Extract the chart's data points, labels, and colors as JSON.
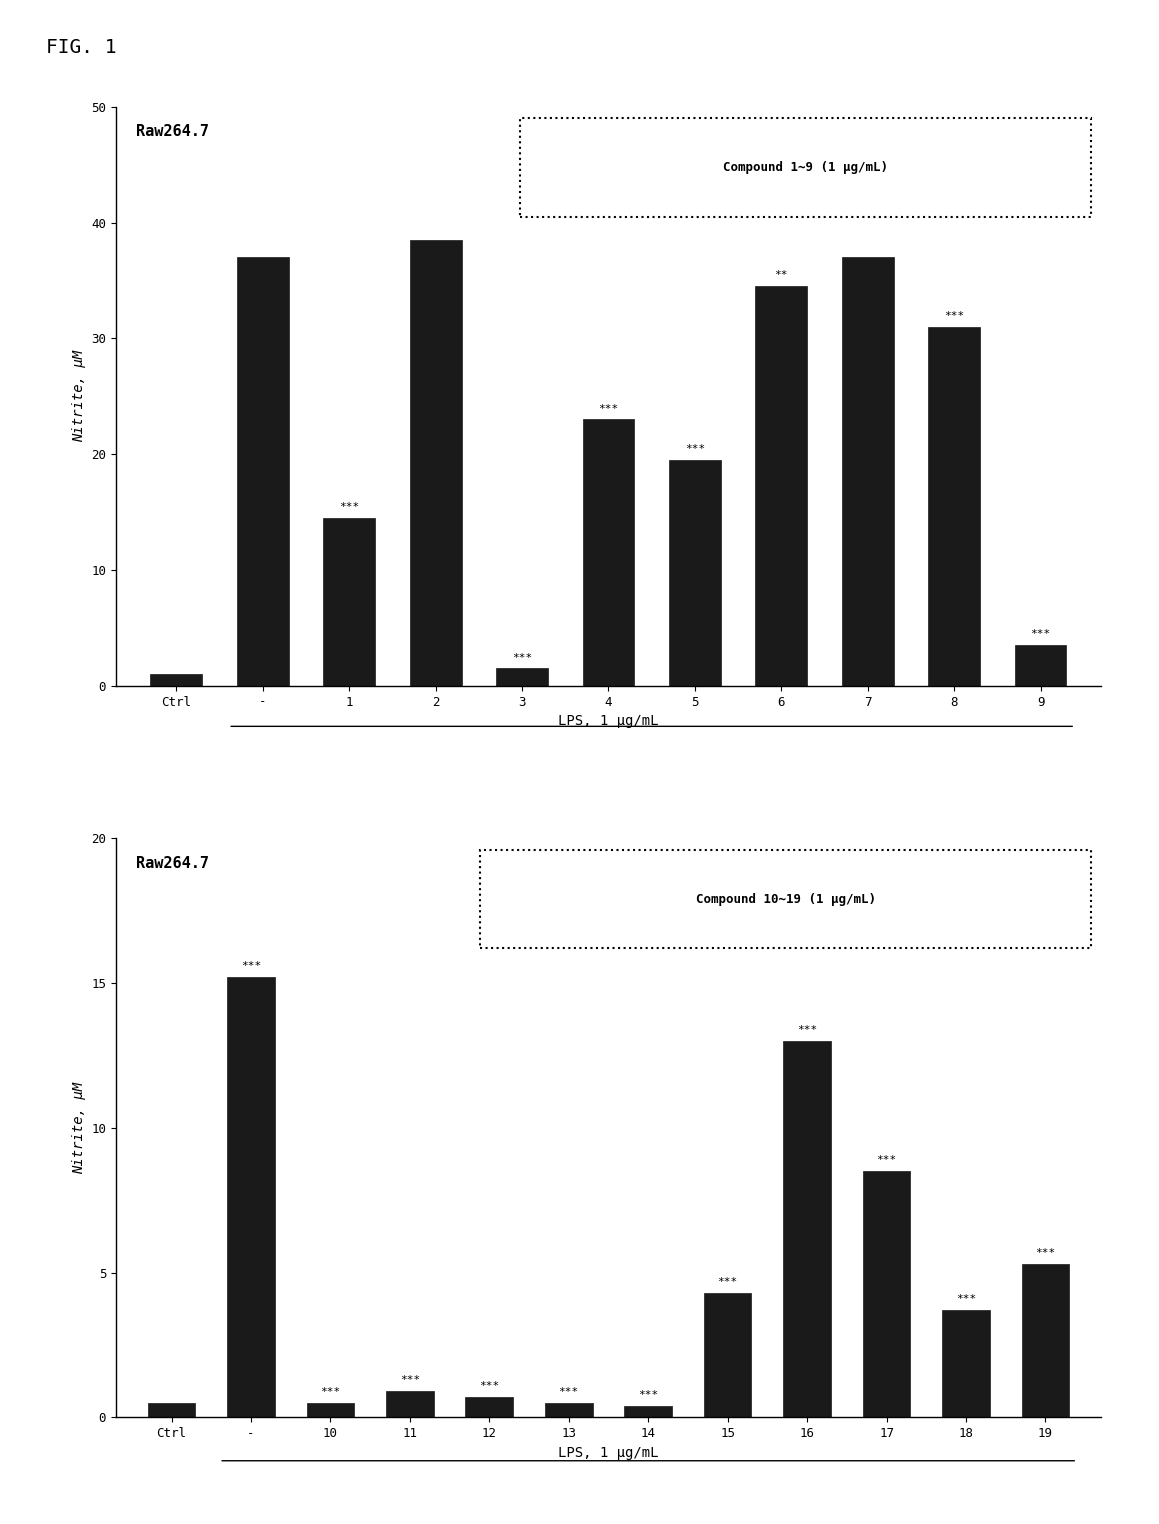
{
  "chart1": {
    "title_text": "Raw264.7",
    "legend_text": "Compound 1~9 (1 μg/mL)",
    "xlabel": "LPS, 1 μg/mL",
    "ylabel": "Nitrite, μM",
    "ylim": [
      0,
      50
    ],
    "yticks": [
      0,
      10,
      20,
      30,
      40,
      50
    ],
    "categories": [
      "Ctrl",
      "-",
      "1",
      "2",
      "3",
      "4",
      "5",
      "6",
      "7",
      "8",
      "9"
    ],
    "values": [
      1.0,
      37.0,
      14.5,
      38.5,
      1.5,
      23.0,
      19.5,
      34.5,
      37.0,
      31.0,
      3.5
    ],
    "bar_color": "#1a1a1a",
    "bar_edge_color": "#1a1a1a",
    "annotations": {
      "1": "***",
      "3": "***",
      "4": "***",
      "5": "***",
      "6": "**",
      "8": "***",
      "9": "***"
    }
  },
  "chart2": {
    "title_text": "Raw264.7",
    "legend_text": "Compound 10~19 (1 μg/mL)",
    "xlabel": "LPS, 1 μg/mL",
    "ylabel": "Nitrite, μM",
    "ylim": [
      0,
      20
    ],
    "yticks": [
      0,
      5,
      10,
      15,
      20
    ],
    "categories": [
      "Ctrl",
      "-",
      "10",
      "11",
      "12",
      "13",
      "14",
      "15",
      "16",
      "17",
      "18",
      "19"
    ],
    "values": [
      0.5,
      15.2,
      0.5,
      0.9,
      0.7,
      0.5,
      0.4,
      4.3,
      13.0,
      8.5,
      3.7,
      5.3
    ],
    "bar_color": "#1a1a1a",
    "bar_edge_color": "#1a1a1a",
    "annotations": {
      "-": "***",
      "10": "***",
      "11": "***",
      "12": "***",
      "13": "***",
      "14": "***",
      "15": "***",
      "16": "***",
      "17": "***",
      "18": "***",
      "19": "***"
    }
  },
  "fig_label": "FIG. 1",
  "background_color": "#ffffff"
}
